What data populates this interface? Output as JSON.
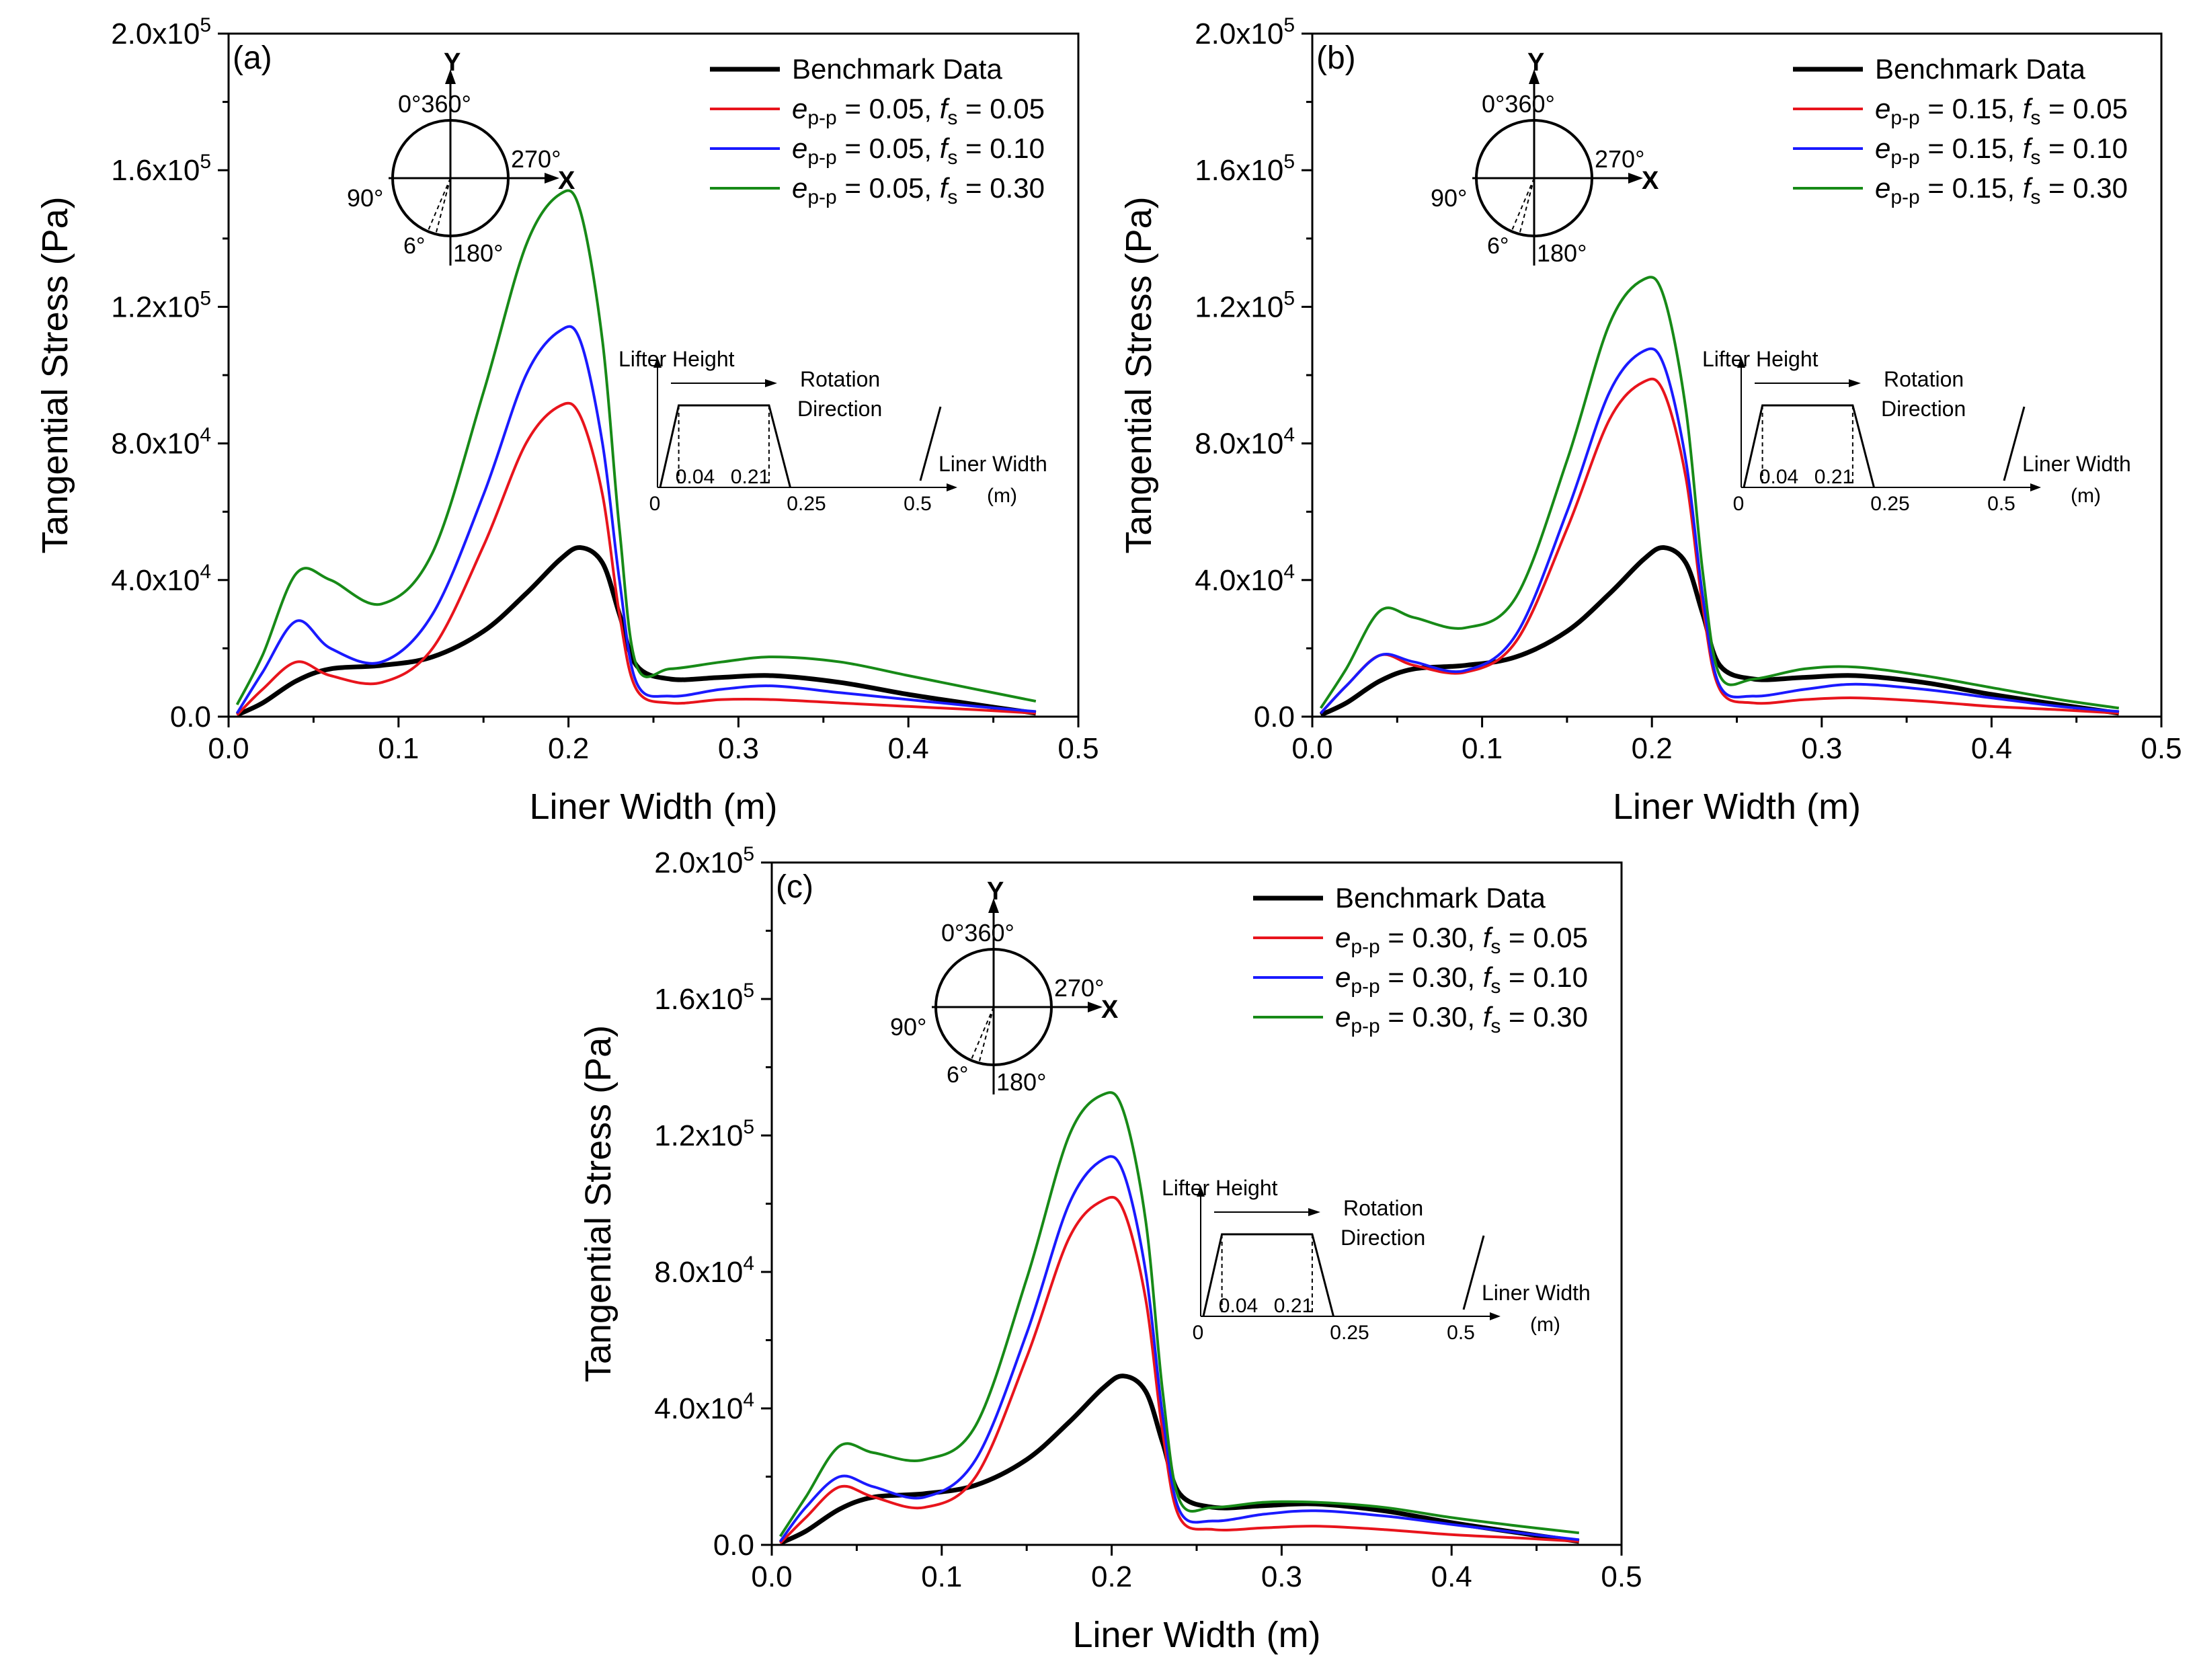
{
  "figure": {
    "colors": {
      "benchmark": "#000000",
      "fs005": "#e8141c",
      "fs010": "#1a1aff",
      "fs030": "#178a17"
    }
  },
  "chart_data": [
    {
      "type": "line",
      "panel_label": "(a)",
      "xlabel": "Liner Width (m)",
      "ylabel": "Tangential Stress (Pa)",
      "xlim": [
        0,
        0.5
      ],
      "ylim": [
        0,
        200000
      ],
      "xticks": [
        "0.0",
        "0.1",
        "0.2",
        "0.3",
        "0.4",
        "0.5"
      ],
      "yticks": [
        {
          "mant": "0.0",
          "exp": ""
        },
        {
          "mant": "4.0x10",
          "exp": "4"
        },
        {
          "mant": "8.0x10",
          "exp": "4"
        },
        {
          "mant": "1.2x10",
          "exp": "5"
        },
        {
          "mant": "1.6x10",
          "exp": "5"
        },
        {
          "mant": "2.0x10",
          "exp": "5"
        }
      ],
      "legend_position": "top-right",
      "x": [
        0.005,
        0.02,
        0.04,
        0.06,
        0.09,
        0.12,
        0.15,
        0.175,
        0.195,
        0.207,
        0.22,
        0.23,
        0.24,
        0.26,
        0.29,
        0.32,
        0.36,
        0.4,
        0.44,
        0.475
      ],
      "series": [
        {
          "name": "Benchmark Data",
          "color_key": "benchmark",
          "legend_sub": "",
          "legend_tail": "",
          "values": [
            500,
            4000,
            10500,
            14000,
            15000,
            17500,
            25000,
            36000,
            46000,
            49500,
            45000,
            30000,
            15000,
            11000,
            11500,
            12000,
            10000,
            6500,
            3500,
            1000
          ]
        },
        {
          "name": "e = 0.05, f = 0.05",
          "color_key": "fs005",
          "legend_e": "0.05",
          "legend_f": "0.05",
          "values": [
            500,
            8000,
            16000,
            12000,
            10000,
            20000,
            50000,
            80000,
            91000,
            88000,
            65000,
            30000,
            8000,
            4000,
            5000,
            5000,
            4000,
            3000,
            2000,
            1000
          ]
        },
        {
          "name": "e = 0.05, f = 0.10",
          "color_key": "fs010",
          "legend_e": "0.05",
          "legend_f": "0.10",
          "values": [
            1000,
            13000,
            28000,
            20000,
            16000,
            30000,
            65000,
            100000,
            113000,
            110000,
            80000,
            40000,
            10000,
            6000,
            8000,
            9000,
            7000,
            5000,
            3000,
            1500
          ]
        },
        {
          "name": "e = 0.05, f = 0.30",
          "color_key": "fs030",
          "legend_e": "0.05",
          "legend_f": "0.30",
          "values": [
            3500,
            18000,
            42000,
            40000,
            33000,
            48000,
            95000,
            138000,
            153000,
            148000,
            110000,
            55000,
            15000,
            14000,
            16000,
            17500,
            16000,
            12000,
            8000,
            4500
          ]
        }
      ]
    },
    {
      "type": "line",
      "panel_label": "(b)",
      "xlabel": "Liner Width (m)",
      "ylabel": "Tangential Stress (Pa)",
      "xlim": [
        0,
        0.5
      ],
      "ylim": [
        0,
        200000
      ],
      "xticks": [
        "0.0",
        "0.1",
        "0.2",
        "0.3",
        "0.4",
        "0.5"
      ],
      "yticks": [
        {
          "mant": "0.0",
          "exp": ""
        },
        {
          "mant": "4.0x10",
          "exp": "4"
        },
        {
          "mant": "8.0x10",
          "exp": "4"
        },
        {
          "mant": "1.2x10",
          "exp": "5"
        },
        {
          "mant": "1.6x10",
          "exp": "5"
        },
        {
          "mant": "2.0x10",
          "exp": "5"
        }
      ],
      "legend_position": "top-right",
      "x": [
        0.005,
        0.02,
        0.04,
        0.06,
        0.09,
        0.12,
        0.15,
        0.175,
        0.195,
        0.207,
        0.22,
        0.23,
        0.24,
        0.26,
        0.29,
        0.32,
        0.36,
        0.4,
        0.44,
        0.475
      ],
      "series": [
        {
          "name": "Benchmark Data",
          "color_key": "benchmark",
          "legend_sub": "",
          "legend_tail": "",
          "values": [
            500,
            4000,
            10500,
            14000,
            15000,
            17500,
            25000,
            36000,
            46000,
            49500,
            45000,
            30000,
            15000,
            11000,
            11500,
            12000,
            10000,
            6500,
            3500,
            1000
          ]
        },
        {
          "name": "e = 0.15, f = 0.05",
          "color_key": "fs005",
          "legend_e": "0.15",
          "legend_f": "0.05",
          "values": [
            1000,
            9000,
            18000,
            15000,
            13000,
            22000,
            55000,
            87000,
            98000,
            95000,
            70000,
            32000,
            8000,
            4000,
            5000,
            5500,
            4500,
            3000,
            2000,
            1000
          ]
        },
        {
          "name": "e = 0.15, f = 0.10",
          "color_key": "fs010",
          "legend_e": "0.15",
          "legend_f": "0.10",
          "values": [
            1000,
            9000,
            18000,
            16000,
            13500,
            24000,
            60000,
            95000,
            107000,
            103000,
            75000,
            35000,
            9000,
            6000,
            8000,
            9500,
            8000,
            5500,
            3000,
            1500
          ]
        },
        {
          "name": "e = 0.15, f = 0.30",
          "color_key": "fs030",
          "legend_e": "0.15",
          "legend_f": "0.30",
          "values": [
            2500,
            14000,
            31000,
            29000,
            26000,
            35000,
            75000,
            115000,
            128000,
            123000,
            90000,
            42000,
            12000,
            11000,
            14000,
            14500,
            12000,
            8500,
            5000,
            2500
          ]
        }
      ]
    },
    {
      "type": "line",
      "panel_label": "(c)",
      "xlabel": "Liner Width (m)",
      "ylabel": "Tangential Stress (Pa)",
      "xlim": [
        0,
        0.5
      ],
      "ylim": [
        0,
        200000
      ],
      "xticks": [
        "0.0",
        "0.1",
        "0.2",
        "0.3",
        "0.4",
        "0.5"
      ],
      "yticks": [
        {
          "mant": "0.0",
          "exp": ""
        },
        {
          "mant": "4.0x10",
          "exp": "4"
        },
        {
          "mant": "8.0x10",
          "exp": "4"
        },
        {
          "mant": "1.2x10",
          "exp": "5"
        },
        {
          "mant": "1.6x10",
          "exp": "5"
        },
        {
          "mant": "2.0x10",
          "exp": "5"
        }
      ],
      "legend_position": "top-right",
      "x": [
        0.005,
        0.02,
        0.04,
        0.06,
        0.09,
        0.12,
        0.15,
        0.175,
        0.195,
        0.207,
        0.22,
        0.23,
        0.24,
        0.26,
        0.29,
        0.32,
        0.36,
        0.4,
        0.44,
        0.475
      ],
      "series": [
        {
          "name": "Benchmark Data",
          "color_key": "benchmark",
          "legend_sub": "",
          "legend_tail": "",
          "values": [
            500,
            4000,
            10500,
            14000,
            15000,
            17500,
            25000,
            36000,
            46000,
            49500,
            45000,
            30000,
            15000,
            11000,
            11500,
            12000,
            10000,
            6500,
            3500,
            1000
          ]
        },
        {
          "name": "e = 0.30, f = 0.05",
          "color_key": "fs005",
          "legend_e": "0.30",
          "legend_f": "0.05",
          "values": [
            500,
            8000,
            17000,
            14000,
            11000,
            20000,
            55000,
            90000,
            101000,
            98000,
            72000,
            33000,
            8000,
            4500,
            5000,
            5500,
            4500,
            3000,
            2000,
            1000
          ]
        },
        {
          "name": "e = 0.30, f = 0.10",
          "color_key": "fs010",
          "legend_e": "0.30",
          "legend_f": "0.10",
          "values": [
            1000,
            11000,
            20000,
            17000,
            14000,
            25000,
            62000,
            100000,
            113000,
            109000,
            80000,
            38000,
            10000,
            7000,
            9000,
            10000,
            8500,
            6000,
            3500,
            1500
          ]
        },
        {
          "name": "e = 0.30, f = 0.30",
          "color_key": "fs030",
          "legend_e": "0.30",
          "legend_f": "0.30",
          "values": [
            2500,
            14000,
            29000,
            27000,
            25000,
            35000,
            78000,
            120000,
            132000,
            127000,
            95000,
            45000,
            13000,
            11000,
            12500,
            12500,
            11000,
            8000,
            5500,
            3500
          ]
        }
      ]
    }
  ],
  "insets": {
    "orientation": {
      "y_axis": "Y",
      "x_axis": "X",
      "top_angles": "0°360°",
      "left_angle": "90°",
      "right_angle": "270°",
      "bottom_angle": "180°",
      "small_angle": "6°"
    },
    "lifter": {
      "title": "Lifter Height",
      "rotation_1": "Rotation",
      "rotation_2": "Direction",
      "width_label": "Liner Width",
      "unit": "(m)",
      "t0": "0",
      "t1": "0.04",
      "t2": "0.21",
      "t3": "0.25",
      "t4": "0.5"
    }
  },
  "legend_texts": {
    "e_sym": "e",
    "e_sub": "p-p",
    "f_sym": "f",
    "f_sub": "s",
    "eq": " = ",
    "sep": ", "
  }
}
